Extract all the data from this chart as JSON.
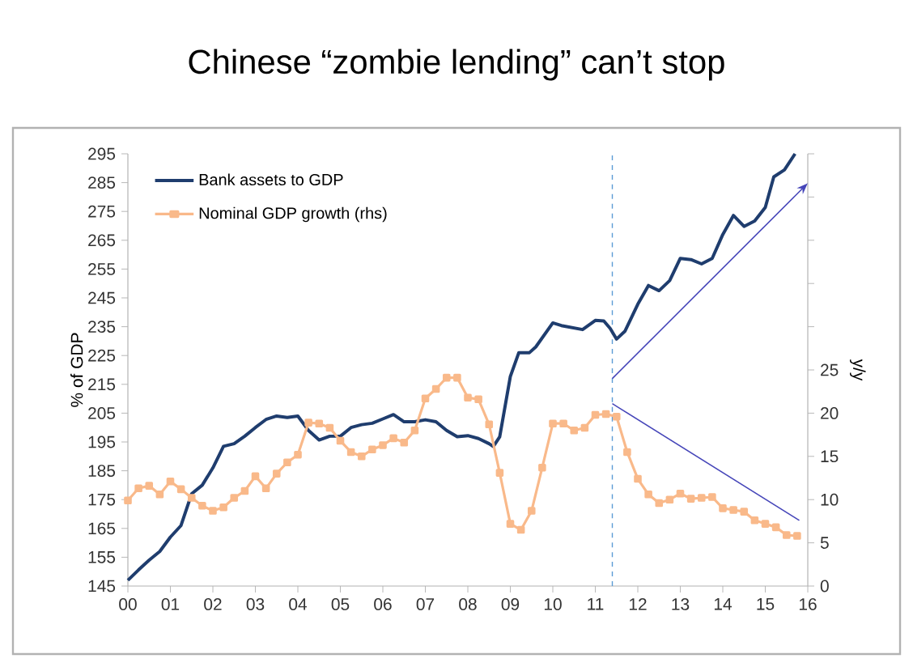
{
  "chart_data": {
    "type": "line",
    "title": "Chinese “zombie lending” can’t stop",
    "ylabel": "% of GDP",
    "y2label": "y/y",
    "xlim": [
      0,
      16
    ],
    "xticks": [
      {
        "value": 0,
        "label": "00"
      },
      {
        "value": 1,
        "label": "01"
      },
      {
        "value": 2,
        "label": "02"
      },
      {
        "value": 3,
        "label": "03"
      },
      {
        "value": 4,
        "label": "04"
      },
      {
        "value": 5,
        "label": "05"
      },
      {
        "value": 6,
        "label": "06"
      },
      {
        "value": 7,
        "label": "07"
      },
      {
        "value": 8,
        "label": "08"
      },
      {
        "value": 9,
        "label": "09"
      },
      {
        "value": 10,
        "label": "10"
      },
      {
        "value": 11,
        "label": "11"
      },
      {
        "value": 12,
        "label": "12"
      },
      {
        "value": 13,
        "label": "13"
      },
      {
        "value": 14,
        "label": "14"
      },
      {
        "value": 15,
        "label": "15"
      },
      {
        "value": 16,
        "label": "16"
      }
    ],
    "ylim": [
      145,
      295
    ],
    "yticks": [
      145,
      155,
      165,
      175,
      185,
      195,
      205,
      215,
      225,
      235,
      245,
      255,
      265,
      275,
      285,
      295
    ],
    "y2lim": [
      0,
      50
    ],
    "y2ticks": [
      0,
      5,
      10,
      15,
      20,
      25,
      {
        "value": 30,
        "label": null
      },
      {
        "value": 35,
        "label": null
      },
      {
        "value": 40,
        "label": null
      },
      {
        "value": 45,
        "label": null
      },
      {
        "value": 50,
        "label": null
      }
    ],
    "legend": "top left",
    "ref_lines": [
      {
        "axis": "x",
        "value": 11.4,
        "color": "#5b9bd5",
        "line_style": "dashed"
      }
    ],
    "series": [
      {
        "name": "Bank assets to GDP",
        "color": "#1f3d6e",
        "marker": "none",
        "x": [
          0,
          0.25,
          0.5,
          0.75,
          1.0,
          1.25,
          1.5,
          1.75,
          2.0,
          2.25,
          2.5,
          2.75,
          3.0,
          3.25,
          3.5,
          3.75,
          4.0,
          4.25,
          4.5,
          4.75,
          5.0,
          5.25,
          5.5,
          5.75,
          6.0,
          6.25,
          6.5,
          6.75,
          7.0,
          7.25,
          7.5,
          7.75,
          8.0,
          8.25,
          8.5,
          8.6,
          8.75,
          9.0,
          9.2,
          9.45,
          9.6,
          10.0,
          10.2,
          10.7,
          11.0,
          11.2,
          11.35,
          11.5,
          11.7,
          12.0,
          12.25,
          12.5,
          12.75,
          13.0,
          13.25,
          13.5,
          13.75,
          14.0,
          14.25,
          14.5,
          14.75,
          15.0,
          15.2,
          15.45,
          15.7
        ],
        "values": [
          147,
          150.6,
          154,
          157,
          162,
          166,
          177,
          180,
          186,
          193.5,
          194.4,
          197,
          200,
          202.8,
          204,
          203.5,
          204,
          199,
          195.7,
          197,
          197,
          200,
          201,
          201.5,
          203,
          204.5,
          202,
          202,
          202.7,
          202,
          199,
          196.8,
          197.2,
          196.2,
          194.4,
          193.4,
          196.8,
          217.7,
          226,
          226,
          228,
          236.3,
          235.4,
          234,
          237.2,
          237,
          234.4,
          230.7,
          233.5,
          242.8,
          249.3,
          247.5,
          251,
          258.7,
          258.3,
          256.8,
          258.7,
          267,
          273.6,
          269.8,
          271.7,
          276.4,
          287,
          289.4,
          295
        ]
      },
      {
        "name": "Nominal GDP growth (rhs)",
        "color": "#f9b98a",
        "marker": "square",
        "axis": "y2",
        "x": [
          0,
          0.25,
          0.5,
          0.75,
          1.0,
          1.25,
          1.5,
          1.75,
          2.0,
          2.25,
          2.5,
          2.75,
          3.0,
          3.25,
          3.5,
          3.75,
          4.0,
          4.25,
          4.5,
          4.75,
          5.0,
          5.25,
          5.5,
          5.75,
          6.0,
          6.25,
          6.5,
          6.75,
          7.0,
          7.25,
          7.5,
          7.75,
          8.0,
          8.25,
          8.5,
          8.75,
          9.0,
          9.25,
          9.5,
          9.75,
          10.0,
          10.25,
          10.5,
          10.75,
          11.0,
          11.25,
          11.5,
          11.75,
          12.0,
          12.25,
          12.5,
          12.75,
          13.0,
          13.25,
          13.5,
          13.75,
          14.0,
          14.25,
          14.5,
          14.75,
          15.0,
          15.25,
          15.5,
          15.75
        ],
        "values": [
          9.9,
          11.3,
          11.6,
          10.6,
          12.1,
          11.2,
          10.2,
          9.3,
          8.7,
          9.1,
          10.2,
          11.0,
          12.7,
          11.3,
          13.0,
          14.3,
          15.2,
          18.9,
          18.8,
          18.3,
          16.8,
          15.5,
          15.0,
          15.8,
          16.3,
          17.1,
          16.6,
          18.0,
          21.7,
          22.8,
          24.1,
          24.1,
          21.8,
          21.6,
          18.7,
          13.1,
          7.2,
          6.5,
          8.7,
          13.7,
          18.8,
          18.8,
          18.0,
          18.3,
          19.8,
          19.9,
          19.6,
          15.5,
          12.4,
          10.6,
          9.6,
          10.0,
          10.7,
          10.1,
          10.2,
          10.3,
          9.0,
          8.8,
          8.6,
          7.6,
          7.2,
          6.8,
          5.9,
          5.8
        ]
      }
    ]
  }
}
